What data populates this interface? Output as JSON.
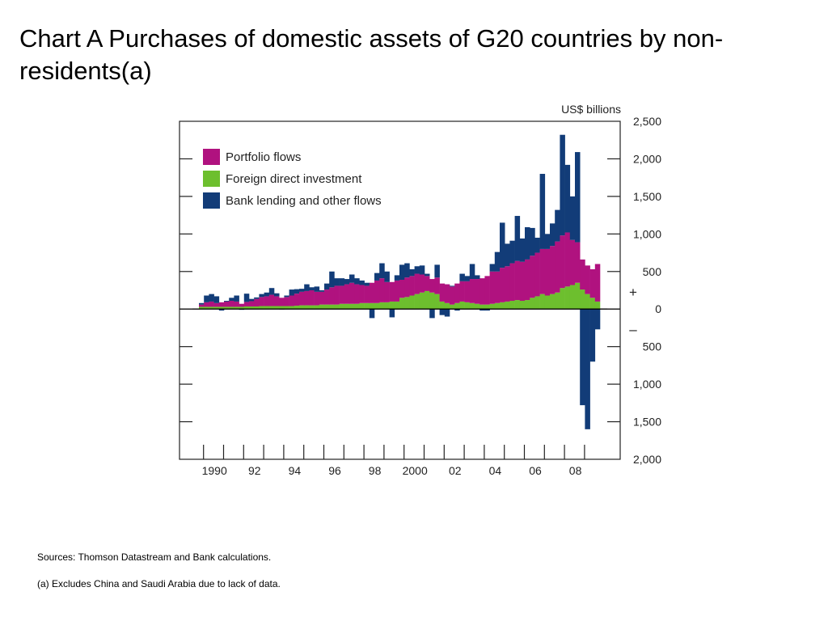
{
  "slide": {
    "title": "Chart A  Purchases of domestic assets of G20 countries by non-residents(a)",
    "sources": "Sources:  Thomson Datastream and Bank calculations.",
    "note": "(a)  Excludes China and Saudi Arabia due to lack of data."
  },
  "chart_data": {
    "type": "bar",
    "stacked": true,
    "unit_label": "US$ billions",
    "ylim": [
      -2000,
      2500
    ],
    "yticks": [
      2500,
      2000,
      1500,
      1000,
      500,
      0,
      -500,
      -1000,
      -1500,
      -2000
    ],
    "ytick_labels": [
      "2,500",
      "2,000",
      "1,500",
      "1,000",
      "500",
      "0",
      "500",
      "1,000",
      "1,500",
      "2,000"
    ],
    "sign_labels": {
      "positive": "+",
      "negative": "–"
    },
    "xtick_labels": [
      "1990",
      "92",
      "94",
      "96",
      "98",
      "2000",
      "02",
      "04",
      "06",
      "08"
    ],
    "periods": "quarterly, 1989 Q4 to 2009 Q1",
    "legend_position": "top-left",
    "colors": {
      "portfolio": "#b0127f",
      "fdi": "#6dbf2e",
      "bank": "#123c78"
    },
    "series": [
      {
        "name": "Portfolio flows",
        "key": "portfolio",
        "values": [
          30,
          60,
          70,
          50,
          60,
          70,
          80,
          70,
          40,
          60,
          70,
          100,
          120,
          130,
          150,
          130,
          110,
          120,
          140,
          160,
          180,
          190,
          200,
          180,
          170,
          200,
          230,
          250,
          240,
          260,
          280,
          260,
          240,
          230,
          270,
          300,
          320,
          270,
          260,
          280,
          240,
          260,
          260,
          270,
          240,
          200,
          180,
          220,
          240,
          250,
          240,
          260,
          270,
          280,
          320,
          330,
          350,
          380,
          430,
          420,
          460,
          470,
          500,
          520,
          520,
          540,
          560,
          580,
          600,
          620,
          640,
          680,
          700,
          720,
          600,
          540,
          400,
          380,
          380,
          500
        ]
      },
      {
        "name": "Foreign direct investment",
        "key": "fdi",
        "values": [
          30,
          30,
          30,
          30,
          30,
          30,
          30,
          30,
          30,
          35,
          35,
          35,
          40,
          40,
          40,
          40,
          40,
          40,
          40,
          45,
          50,
          50,
          50,
          50,
          60,
          60,
          60,
          60,
          70,
          70,
          70,
          70,
          80,
          80,
          80,
          80,
          90,
          90,
          100,
          100,
          150,
          160,
          180,
          200,
          220,
          240,
          220,
          200,
          100,
          80,
          60,
          80,
          100,
          90,
          80,
          70,
          60,
          60,
          70,
          80,
          90,
          100,
          110,
          120,
          110,
          120,
          150,
          170,
          200,
          180,
          200,
          220,
          280,
          300,
          320,
          350,
          260,
          200,
          150,
          100
        ]
      },
      {
        "name": "Bank lending and other flows",
        "key": "bank",
        "values": [
          20,
          90,
          100,
          90,
          -20,
          10,
          40,
          80,
          -10,
          110,
          30,
          20,
          40,
          50,
          90,
          40,
          -5,
          20,
          80,
          60,
          40,
          90,
          40,
          70,
          20,
          80,
          210,
          100,
          100,
          70,
          110,
          80,
          60,
          40,
          -120,
          100,
          200,
          140,
          -110,
          70,
          200,
          190,
          90,
          100,
          120,
          30,
          -120,
          170,
          -80,
          -100,
          10,
          -20,
          100,
          70,
          200,
          50,
          -20,
          -20,
          100,
          260,
          600,
          300,
          300,
          600,
          310,
          430,
          370,
          200,
          1000,
          200,
          300,
          420,
          1340,
          900,
          580,
          1200,
          -1280,
          -1600,
          -700,
          -270
        ]
      }
    ]
  }
}
